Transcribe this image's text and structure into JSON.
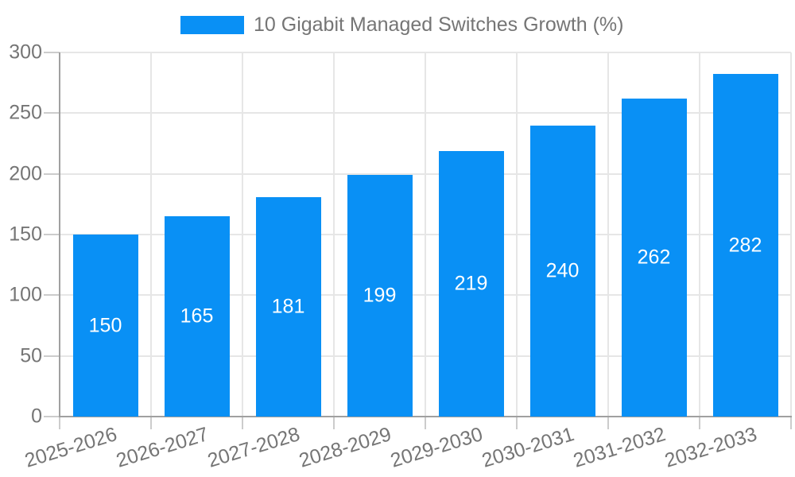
{
  "legend": {
    "label": "10 Gigabit Managed Switches Growth (%)"
  },
  "chart_data": {
    "type": "bar",
    "title": "10 Gigabit Managed Switches Growth (%)",
    "categories": [
      "2025-2026",
      "2026-2027",
      "2027-2028",
      "2028-2029",
      "2029-2030",
      "2030-2031",
      "2031-2032",
      "2032-2033"
    ],
    "series": [
      {
        "name": "10 Gigabit Managed Switches Growth (%)",
        "values": [
          150,
          165,
          181,
          199,
          219,
          240,
          262,
          282
        ]
      }
    ],
    "xlabel": "",
    "ylabel": "",
    "ylim": [
      0,
      300
    ],
    "yticks": [
      0,
      50,
      100,
      150,
      200,
      250,
      300
    ],
    "grid": true,
    "legend_position": "top",
    "value_labels_position": "inside-center"
  },
  "colors": {
    "bar": "#0990F5",
    "grid": "#e6e6e6",
    "axis": "#a0a0a0",
    "tick": "#cccccc",
    "text": "#757575",
    "value_label": "#ffffff",
    "background": "#ffffff"
  }
}
